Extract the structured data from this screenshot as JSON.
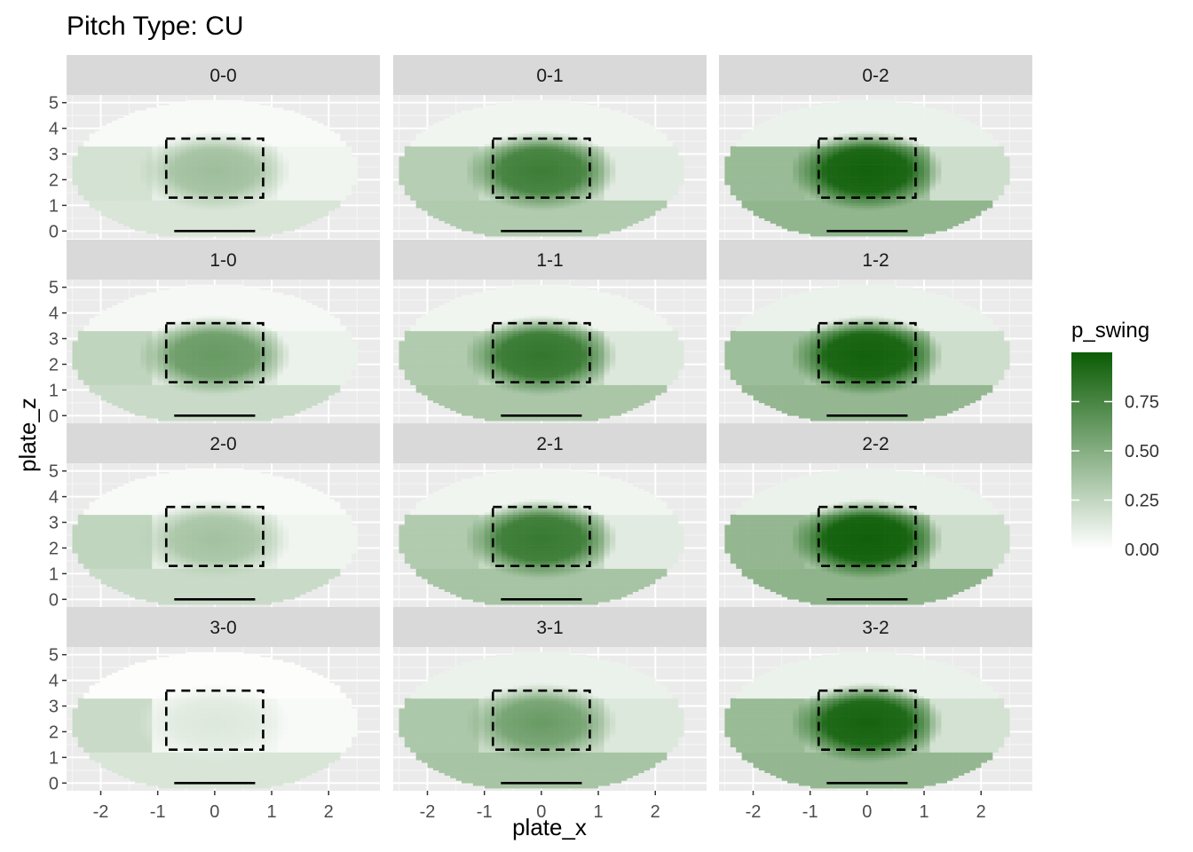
{
  "chart_data": {
    "type": "heatmap",
    "title": "Pitch Type: CU",
    "xlabel": "plate_x",
    "ylabel": "plate_z",
    "xlim": [
      -2.6,
      2.9
    ],
    "ylim": [
      -0.3,
      5.3
    ],
    "x_ticks": [
      -2,
      -1,
      0,
      1,
      2
    ],
    "x_tick_labels": [
      "-2",
      "-1",
      "0",
      "1",
      "2"
    ],
    "y_ticks": [
      0,
      1,
      2,
      3,
      4,
      5
    ],
    "y_tick_labels": [
      "0",
      "1",
      "2",
      "3",
      "4",
      "5"
    ],
    "grid": true,
    "legend": {
      "title": "p_swing",
      "placement": "right",
      "range": [
        0,
        1
      ],
      "breaks": [
        0.0,
        0.25,
        0.5,
        0.75
      ],
      "break_labels": [
        "0.00",
        "0.25",
        "0.50",
        "0.75"
      ],
      "low_color": "#ffffff",
      "high_color": "#0b5c04"
    },
    "strike_zone": {
      "x": [
        -0.85,
        0.85
      ],
      "z": [
        1.3,
        3.6
      ]
    },
    "home_plate": {
      "x": [
        -0.71,
        0.71
      ],
      "z": 0
    },
    "panels": [
      {
        "label": "0-0",
        "zone_center": 0.32,
        "outer_level": 0.1,
        "peak": 0.4,
        "left_low": 0.18,
        "right_low": 0.06,
        "top_level": 0.03,
        "bottom_level": 0.16
      },
      {
        "label": "0-1",
        "zone_center": 0.7,
        "outer_level": 0.22,
        "peak": 0.8,
        "left_low": 0.3,
        "right_low": 0.12,
        "top_level": 0.06,
        "bottom_level": 0.32
      },
      {
        "label": "0-2",
        "zone_center": 0.9,
        "outer_level": 0.38,
        "peak": 0.97,
        "left_low": 0.42,
        "right_low": 0.2,
        "top_level": 0.08,
        "bottom_level": 0.45
      },
      {
        "label": "1-0",
        "zone_center": 0.55,
        "outer_level": 0.14,
        "peak": 0.62,
        "left_low": 0.26,
        "right_low": 0.08,
        "top_level": 0.04,
        "bottom_level": 0.22
      },
      {
        "label": "1-1",
        "zone_center": 0.75,
        "outer_level": 0.26,
        "peak": 0.84,
        "left_low": 0.32,
        "right_low": 0.14,
        "top_level": 0.06,
        "bottom_level": 0.35
      },
      {
        "label": "1-2",
        "zone_center": 0.9,
        "outer_level": 0.36,
        "peak": 0.97,
        "left_low": 0.4,
        "right_low": 0.2,
        "top_level": 0.08,
        "bottom_level": 0.44
      },
      {
        "label": "2-0",
        "zone_center": 0.3,
        "outer_level": 0.1,
        "peak": 0.38,
        "left_low": 0.26,
        "right_low": 0.06,
        "top_level": 0.03,
        "bottom_level": 0.22
      },
      {
        "label": "2-1",
        "zone_center": 0.74,
        "outer_level": 0.24,
        "peak": 0.82,
        "left_low": 0.32,
        "right_low": 0.12,
        "top_level": 0.06,
        "bottom_level": 0.36
      },
      {
        "label": "2-2",
        "zone_center": 0.92,
        "outer_level": 0.38,
        "peak": 0.98,
        "left_low": 0.44,
        "right_low": 0.2,
        "top_level": 0.08,
        "bottom_level": 0.46
      },
      {
        "label": "3-0",
        "zone_center": 0.1,
        "outer_level": 0.05,
        "peak": 0.14,
        "left_low": 0.22,
        "right_low": 0.03,
        "top_level": 0.01,
        "bottom_level": 0.16
      },
      {
        "label": "3-1",
        "zone_center": 0.48,
        "outer_level": 0.22,
        "peak": 0.62,
        "left_low": 0.34,
        "right_low": 0.14,
        "top_level": 0.08,
        "bottom_level": 0.36
      },
      {
        "label": "3-2",
        "zone_center": 0.88,
        "outer_level": 0.34,
        "peak": 0.96,
        "left_low": 0.42,
        "right_low": 0.18,
        "top_level": 0.08,
        "bottom_level": 0.44
      }
    ]
  }
}
